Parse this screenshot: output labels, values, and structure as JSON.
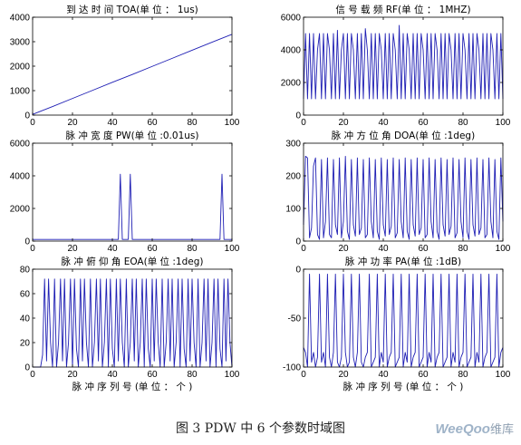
{
  "figure_caption": "图 3 PDW 中 6 个参数时域图",
  "watermark": {
    "brand": "WeeQoo",
    "suffix": "维库"
  },
  "colors": {
    "line": "#1f1fb4",
    "axis": "#000000",
    "background": "#ffffff"
  },
  "chart_data": [
    {
      "type": "line",
      "title": "到 达 时 间 TOA(单 位 ： 1us)",
      "xlabel": "",
      "ylabel": "",
      "xlim": [
        0,
        100
      ],
      "ylim": [
        0,
        4000
      ],
      "xticks": [
        0,
        20,
        40,
        60,
        80,
        100
      ],
      "yticks": [
        0,
        1000,
        2000,
        3000,
        4000
      ],
      "grid": false,
      "series": [
        {
          "x": [
            0,
            10,
            20,
            30,
            40,
            50,
            60,
            70,
            80,
            90,
            100
          ],
          "values": [
            30,
            350,
            680,
            1010,
            1340,
            1660,
            1990,
            2320,
            2650,
            2980,
            3300
          ]
        }
      ]
    },
    {
      "type": "line",
      "title": "信 号 载 频 RF(单 位 ： 1MHZ)",
      "xlabel": "",
      "ylabel": "",
      "xlim": [
        0,
        100
      ],
      "ylim": [
        0,
        6000
      ],
      "xticks": [
        0,
        20,
        40,
        60,
        80,
        100
      ],
      "yticks": [
        0,
        2000,
        4000,
        6000
      ],
      "grid": false,
      "series": [
        {
          "x": [
            0,
            1,
            2,
            3,
            4,
            5,
            6,
            7,
            8,
            9,
            10,
            11,
            12,
            13,
            14,
            15,
            16,
            17,
            18,
            19,
            20,
            21,
            22,
            23,
            24,
            25,
            26,
            27,
            28,
            29,
            30,
            31,
            32,
            33,
            34,
            35,
            36,
            37,
            38,
            39,
            40,
            41,
            42,
            43,
            44,
            45,
            46,
            47,
            48,
            49,
            50,
            51,
            52,
            53,
            54,
            55,
            56,
            57,
            58,
            59,
            60,
            61,
            62,
            63,
            64,
            65,
            66,
            67,
            68,
            69,
            70,
            71,
            72,
            73,
            74,
            75,
            76,
            77,
            78,
            79,
            80,
            81,
            82,
            83,
            84,
            85,
            86,
            87,
            88,
            89,
            90,
            91,
            92,
            93,
            94,
            95,
            96,
            97,
            98,
            99,
            100
          ],
          "values": [
            1000,
            5000,
            1000,
            5000,
            1000,
            5000,
            1000,
            4000,
            5000,
            1000,
            5000,
            1000,
            5000,
            4000,
            1000,
            5000,
            1000,
            5200,
            1000,
            4000,
            5000,
            1000,
            5000,
            1000,
            5000,
            4000,
            1000,
            5000,
            1000,
            5000,
            1000,
            5300,
            4000,
            1000,
            5000,
            1000,
            5000,
            1000,
            5000,
            4000,
            1000,
            5000,
            1000,
            5000,
            1000,
            5000,
            4000,
            1000,
            5500,
            1000,
            5000,
            1000,
            5000,
            4000,
            1000,
            5000,
            1000,
            5000,
            1000,
            5000,
            4000,
            1000,
            5000,
            1000,
            5000,
            1000,
            5000,
            4000,
            1000,
            5000,
            1000,
            5000,
            1000,
            5000,
            4000,
            1000,
            5000,
            1000,
            5000,
            1000,
            5000,
            4000,
            1000,
            5000,
            1000,
            5000,
            1000,
            5000,
            4000,
            1000,
            5000,
            1000,
            5000,
            1000,
            5000,
            4000,
            1000,
            5000,
            1000,
            5000,
            1000
          ]
        }
      ]
    },
    {
      "type": "line",
      "title": "脉 冲 宽 度 PW(单 位 :0.01us)",
      "xlabel": "",
      "ylabel": "",
      "xlim": [
        0,
        100
      ],
      "ylim": [
        0,
        6000
      ],
      "xticks": [
        0,
        20,
        40,
        60,
        80,
        100
      ],
      "yticks": [
        0,
        2000,
        4000,
        6000
      ],
      "grid": false,
      "series": [
        {
          "x": [
            0,
            43,
            44,
            45,
            48,
            49,
            50,
            94,
            95,
            96,
            100
          ],
          "values": [
            100,
            100,
            4100,
            100,
            100,
            4100,
            100,
            100,
            4100,
            100,
            100
          ]
        }
      ]
    },
    {
      "type": "line",
      "title": "脉 冲 方 位 角 DOA(单 位 :1deg)",
      "xlabel": "",
      "ylabel": "",
      "xlim": [
        0,
        100
      ],
      "ylim": [
        0,
        300
      ],
      "xticks": [
        0,
        20,
        40,
        60,
        80,
        100
      ],
      "yticks": [
        0,
        100,
        200,
        300
      ],
      "grid": false,
      "series": [
        {
          "x": [
            0,
            1,
            2,
            3,
            4,
            5,
            6,
            7,
            8,
            9,
            10,
            11,
            12,
            13,
            14,
            15,
            16,
            17,
            18,
            19,
            20,
            21,
            22,
            23,
            24,
            25,
            26,
            27,
            28,
            29,
            30,
            31,
            32,
            33,
            34,
            35,
            36,
            37,
            38,
            39,
            40,
            41,
            42,
            43,
            44,
            45,
            46,
            47,
            48,
            49,
            50,
            51,
            52,
            53,
            54,
            55,
            56,
            57,
            58,
            59,
            60,
            61,
            62,
            63,
            64,
            65,
            66,
            67,
            68,
            69,
            70,
            71,
            72,
            73,
            74,
            75,
            76,
            77,
            78,
            79,
            80,
            81,
            82,
            83,
            84,
            85,
            86,
            87,
            88,
            89,
            90,
            91,
            92,
            93,
            94,
            95,
            96,
            97,
            98,
            99,
            100
          ],
          "values": [
            50,
            260,
            255,
            10,
            40,
            230,
            255,
            20,
            5,
            250,
            10,
            60,
            255,
            20,
            10,
            250,
            50,
            20,
            255,
            10,
            60,
            260,
            30,
            5,
            250,
            50,
            15,
            255,
            20,
            40,
            250,
            10,
            20,
            255,
            60,
            10,
            250,
            30,
            5,
            255,
            50,
            15,
            250,
            20,
            45,
            255,
            10,
            25,
            250,
            60,
            10,
            255,
            30,
            5,
            250,
            50,
            15,
            255,
            20,
            40,
            250,
            10,
            20,
            255,
            60,
            10,
            250,
            30,
            5,
            255,
            50,
            15,
            250,
            20,
            45,
            255,
            10,
            25,
            250,
            60,
            10,
            255,
            30,
            5,
            250,
            50,
            15,
            255,
            20,
            40,
            250,
            10,
            20,
            255,
            60,
            10,
            250,
            30,
            5,
            255,
            60
          ]
        }
      ]
    },
    {
      "type": "line",
      "title": "脉 冲 俯 仰 角 EOA(单 位 :1deg)",
      "xlabel": "脉 冲 序 列 号 (单 位 ： 个 )",
      "ylabel": "",
      "xlim": [
        0,
        100
      ],
      "ylim": [
        0,
        80
      ],
      "xticks": [
        0,
        20,
        40,
        60,
        80,
        100
      ],
      "yticks": [
        0,
        20,
        40,
        60,
        80
      ],
      "grid": false,
      "series": [
        {
          "x": [
            0,
            1,
            2,
            3,
            4,
            5,
            6,
            7,
            8,
            9,
            10,
            11,
            12,
            13,
            14,
            15,
            16,
            17,
            18,
            19,
            20,
            21,
            22,
            23,
            24,
            25,
            26,
            27,
            28,
            29,
            30,
            31,
            32,
            33,
            34,
            35,
            36,
            37,
            38,
            39,
            40,
            41,
            42,
            43,
            44,
            45,
            46,
            47,
            48,
            49,
            50,
            51,
            52,
            53,
            54,
            55,
            56,
            57,
            58,
            59,
            60,
            61,
            62,
            63,
            64,
            65,
            66,
            67,
            68,
            69,
            70,
            71,
            72,
            73,
            74,
            75,
            76,
            77,
            78,
            79,
            80,
            81,
            82,
            83,
            84,
            85,
            86,
            87,
            88,
            89,
            90,
            91,
            92,
            93,
            94,
            95,
            96,
            97,
            98,
            99,
            100
          ],
          "values": [
            0,
            0,
            0,
            0,
            0,
            10,
            72,
            5,
            72,
            20,
            0,
            72,
            0,
            20,
            72,
            5,
            72,
            0,
            20,
            72,
            0,
            72,
            15,
            0,
            72,
            5,
            72,
            20,
            0,
            72,
            0,
            20,
            72,
            5,
            72,
            0,
            20,
            72,
            0,
            72,
            15,
            0,
            72,
            5,
            72,
            20,
            0,
            72,
            0,
            20,
            72,
            5,
            72,
            0,
            20,
            72,
            0,
            72,
            15,
            0,
            72,
            5,
            72,
            20,
            0,
            72,
            0,
            20,
            72,
            5,
            72,
            0,
            20,
            72,
            0,
            72,
            15,
            0,
            72,
            5,
            72,
            20,
            0,
            72,
            0,
            20,
            72,
            5,
            72,
            0,
            20,
            72,
            0,
            72,
            15,
            0,
            72,
            5,
            72,
            20,
            0
          ]
        }
      ]
    },
    {
      "type": "line",
      "title": "脉 冲 功 率 PA(单 位 :1dB)",
      "xlabel": "脉 冲 序 列 号 (单 位 ： 个 )",
      "ylabel": "",
      "xlim": [
        0,
        100
      ],
      "ylim": [
        -100,
        0
      ],
      "xticks": [
        0,
        20,
        40,
        60,
        80,
        100
      ],
      "yticks": [
        -100,
        -50,
        0
      ],
      "grid": false,
      "series": [
        {
          "x": [
            0,
            1,
            2,
            3,
            4,
            5,
            6,
            7,
            8,
            9,
            10,
            11,
            12,
            13,
            14,
            15,
            16,
            17,
            18,
            19,
            20,
            21,
            22,
            23,
            24,
            25,
            26,
            27,
            28,
            29,
            30,
            31,
            32,
            33,
            34,
            35,
            36,
            37,
            38,
            39,
            40,
            41,
            42,
            43,
            44,
            45,
            46,
            47,
            48,
            49,
            50,
            51,
            52,
            53,
            54,
            55,
            56,
            57,
            58,
            59,
            60,
            61,
            62,
            63,
            64,
            65,
            66,
            67,
            68,
            69,
            70,
            71,
            72,
            73,
            74,
            75,
            76,
            77,
            78,
            79,
            80,
            81,
            82,
            83,
            84,
            85,
            86,
            87,
            88,
            89,
            90,
            91,
            92,
            93,
            94,
            95,
            96,
            97,
            98,
            99,
            100
          ],
          "values": [
            -80,
            -85,
            -100,
            -5,
            -95,
            -85,
            -100,
            -90,
            -5,
            -95,
            -85,
            -100,
            -5,
            -90,
            -100,
            -85,
            -5,
            -95,
            -100,
            -90,
            -5,
            -85,
            -100,
            -95,
            -5,
            -90,
            -100,
            -85,
            -5,
            -95,
            -100,
            -90,
            -85,
            -5,
            -100,
            -95,
            -90,
            -5,
            -100,
            -85,
            -95,
            -5,
            -100,
            -90,
            -85,
            -5,
            -100,
            -95,
            -90,
            -5,
            -100,
            -85,
            -95,
            -5,
            -100,
            -90,
            -85,
            -5,
            -100,
            -95,
            -90,
            -5,
            -100,
            -85,
            -95,
            -5,
            -100,
            -90,
            -85,
            -5,
            -100,
            -95,
            -90,
            -5,
            -100,
            -85,
            -95,
            -5,
            -100,
            -90,
            -85,
            -5,
            -100,
            -95,
            -90,
            -5,
            -100,
            -85,
            -95,
            -5,
            -100,
            -90,
            -85,
            -5,
            -100,
            -95,
            -90,
            -5,
            -100,
            -85,
            -80
          ]
        }
      ]
    }
  ]
}
